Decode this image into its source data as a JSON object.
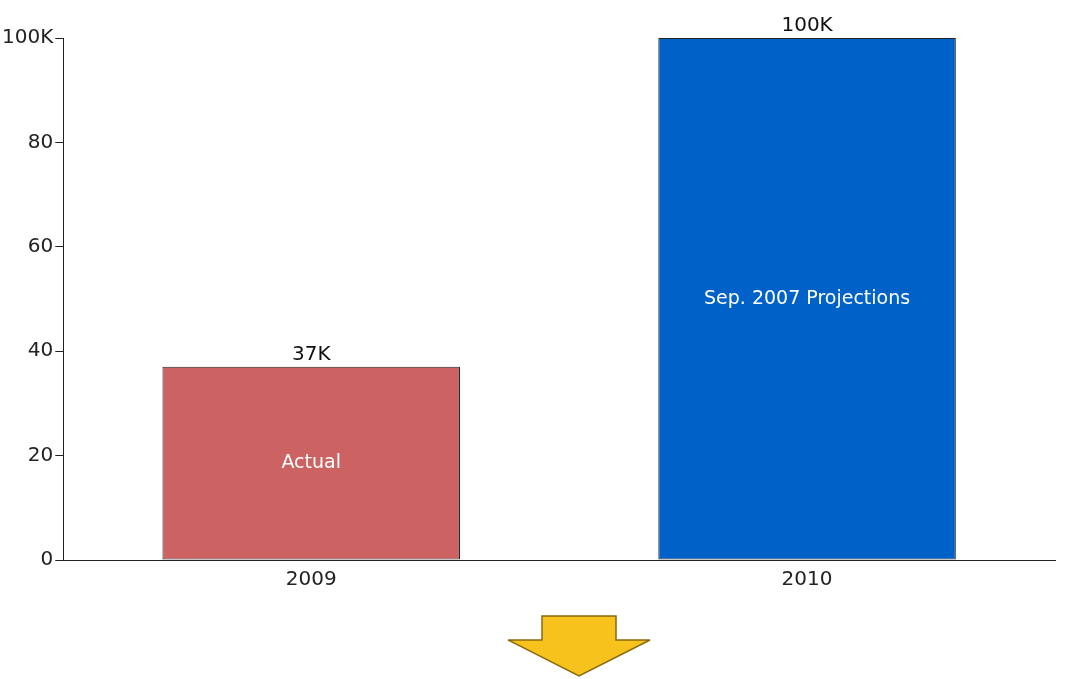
{
  "chart_data": {
    "type": "bar",
    "categories": [
      "2009",
      "2010"
    ],
    "values": [
      37,
      100
    ],
    "colors": [
      "#cd6262",
      "#0062c9"
    ],
    "value_labels": [
      "37K",
      "100K"
    ],
    "annotations": [
      "Actual",
      "Sep. 2007 Projections"
    ],
    "ylim": [
      0,
      100
    ],
    "yticks": [
      0,
      20,
      40,
      60,
      80,
      {
        "value": 100,
        "label": "100K"
      }
    ],
    "grid": false,
    "legend": false
  }
}
